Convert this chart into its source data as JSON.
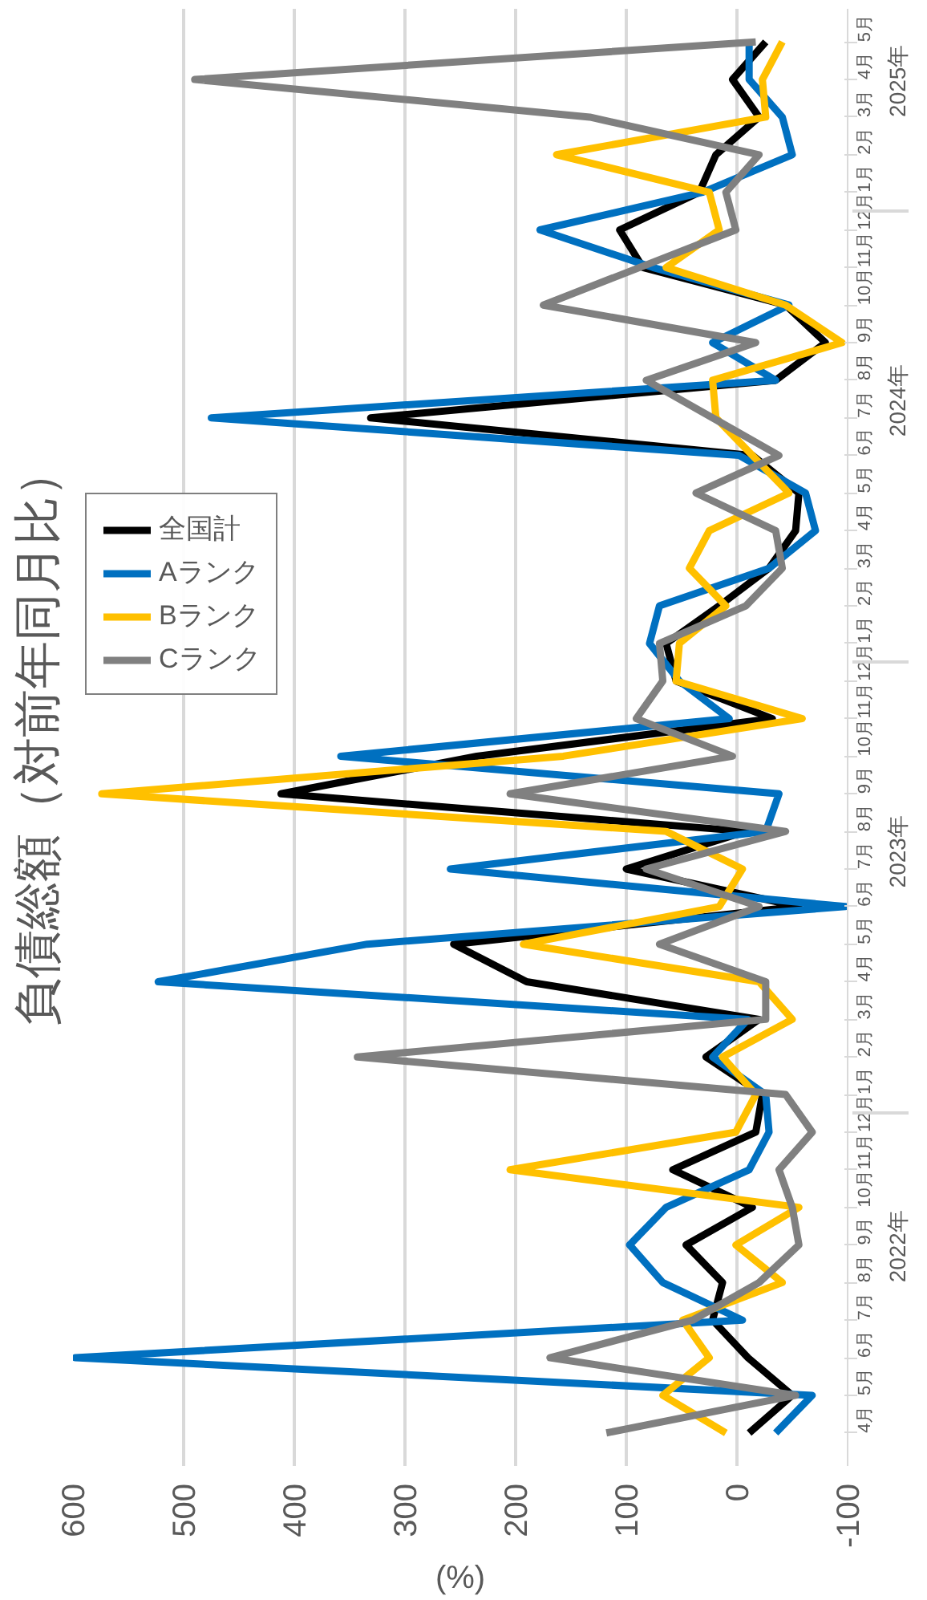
{
  "chart_data": {
    "type": "line",
    "orientation": "horizontal",
    "title": "負債総額（対前年同月比）",
    "xlabel": "(%)",
    "categories": [
      "5月",
      "4月",
      "3月",
      "2月",
      "1月",
      "12月",
      "11月",
      "10月",
      "9月",
      "8月",
      "7月",
      "6月",
      "5月",
      "4月",
      "3月",
      "2月",
      "1月",
      "12月",
      "11月",
      "10月",
      "9月",
      "8月",
      "7月",
      "6月",
      "5月",
      "4月",
      "3月",
      "2月",
      "1月",
      "12月",
      "11月",
      "10月",
      "9月",
      "8月",
      "7月",
      "6月",
      "5月",
      "4月"
    ],
    "annotations": [
      "2025年",
      "2024年",
      "2023年",
      "2022年"
    ],
    "xlim": [
      600,
      -100
    ],
    "xticks": [
      600,
      500,
      400,
      300,
      200,
      100,
      0,
      -100
    ],
    "grid": "x",
    "legend": "left",
    "series": [
      {
        "name": "全国計",
        "color": "#000000",
        "values": [
          -26,
          4,
          -20,
          19,
          34,
          106,
          85,
          -44,
          -80,
          -35,
          331,
          -14,
          -56,
          -53,
          -29,
          16,
          64,
          55,
          -32,
          235,
          412,
          -8,
          100,
          -56,
          256,
          190,
          -20,
          28,
          -23,
          -17,
          58,
          -14,
          46,
          13,
          22,
          -10,
          -50,
          -11
        ]
      },
      {
        "name": "Aランク",
        "color": "#0070c0",
        "values": [
          -11,
          -11,
          -41,
          -50,
          31,
          178,
          76,
          -47,
          22,
          -35,
          475,
          -2,
          -62,
          -71,
          -29,
          70,
          79,
          52,
          7,
          358,
          -38,
          -26,
          259,
          -98,
          334,
          523,
          -10,
          22,
          -26,
          -29,
          -11,
          64,
          97,
          67,
          -5,
          598,
          -68,
          -35
        ]
      },
      {
        "name": "Bランク",
        "color": "#ffc000",
        "values": [
          -41,
          -23,
          -26,
          163,
          25,
          16,
          64,
          -44,
          -95,
          22,
          19,
          -14,
          -47,
          25,
          43,
          10,
          52,
          55,
          -59,
          157,
          574,
          64,
          -5,
          16,
          193,
          -20,
          -50,
          13,
          -17,
          1,
          205,
          -56,
          1,
          -41,
          49,
          25,
          67,
          10
        ]
      },
      {
        "name": "Cランク",
        "color": "#808080",
        "values": [
          -17,
          490,
          133,
          -20,
          10,
          1,
          88,
          175,
          -17,
          82,
          22,
          -38,
          37,
          -35,
          -41,
          -8,
          70,
          67,
          91,
          4,
          205,
          -44,
          82,
          -20,
          70,
          -26,
          -26,
          343,
          -44,
          -68,
          -38,
          -50,
          -56,
          -20,
          40,
          169,
          -53,
          118
        ]
      }
    ]
  }
}
